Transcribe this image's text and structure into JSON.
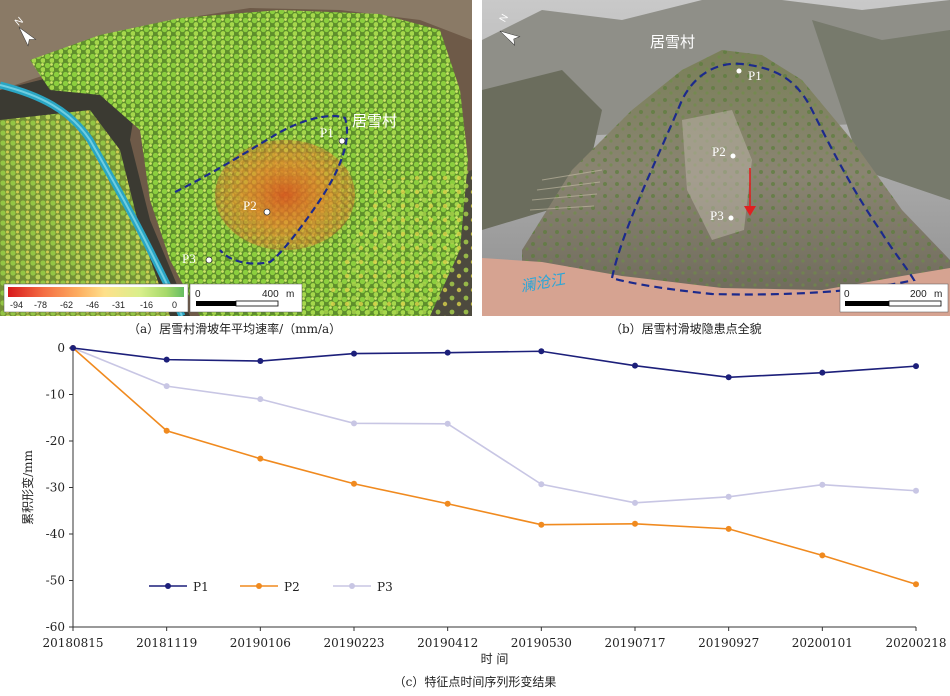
{
  "panel_a": {
    "village": "居雪村",
    "points": [
      "P1",
      "P2",
      "P3"
    ],
    "north": "N",
    "colorbar_ticks": [
      "-94",
      "-78",
      "-62",
      "-46",
      "-31",
      "-16",
      "0"
    ],
    "colorbar_colors": [
      "#d7191c",
      "#f46d43",
      "#fdae61",
      "#fee08b",
      "#d9ef8b",
      "#a6d96a",
      "#66bd63"
    ],
    "scale_zero": "0",
    "scale_value": "400",
    "scale_unit": "m",
    "caption": "（a）居雪村滑坡年平均速率/（mm/a）"
  },
  "panel_b": {
    "village": "居雪村",
    "points": [
      "P1",
      "P2",
      "P3"
    ],
    "north": "N",
    "river": "澜沧江",
    "scale_zero": "0",
    "scale_value": "200",
    "scale_unit": "m",
    "caption": "（b）居雪村滑坡隐患点全貌"
  },
  "chart_data": {
    "type": "line",
    "categories": [
      "20180815",
      "20181119",
      "20190106",
      "20190223",
      "20190412",
      "20190530",
      "20190717",
      "20190927",
      "20200101",
      "20200218"
    ],
    "series": [
      {
        "name": "P1",
        "color": "#1c1f7a",
        "values": [
          0,
          -2.5,
          -2.8,
          -1.2,
          -1.0,
          -0.7,
          -3.8,
          -6.3,
          -5.3,
          -3.9
        ]
      },
      {
        "name": "P2",
        "color": "#f08a1f",
        "values": [
          0,
          -17.8,
          -23.8,
          -29.2,
          -33.5,
          -38.0,
          -37.8,
          -38.9,
          -44.6,
          -50.8
        ]
      },
      {
        "name": "P3",
        "color": "#c8c6e4",
        "values": [
          0,
          -8.2,
          -11.0,
          -16.2,
          -16.3,
          -29.3,
          -33.3,
          -32.0,
          -29.4,
          -30.7
        ]
      }
    ],
    "ylim": [
      -60,
      0
    ],
    "yticks": [
      0,
      -10,
      -20,
      -30,
      -40,
      -50,
      -60
    ],
    "xlabel": "时 间",
    "ylabel": "累积形变/mm",
    "legend_position": "bottom-left",
    "caption": "（c）特征点时间序列形变结果"
  }
}
